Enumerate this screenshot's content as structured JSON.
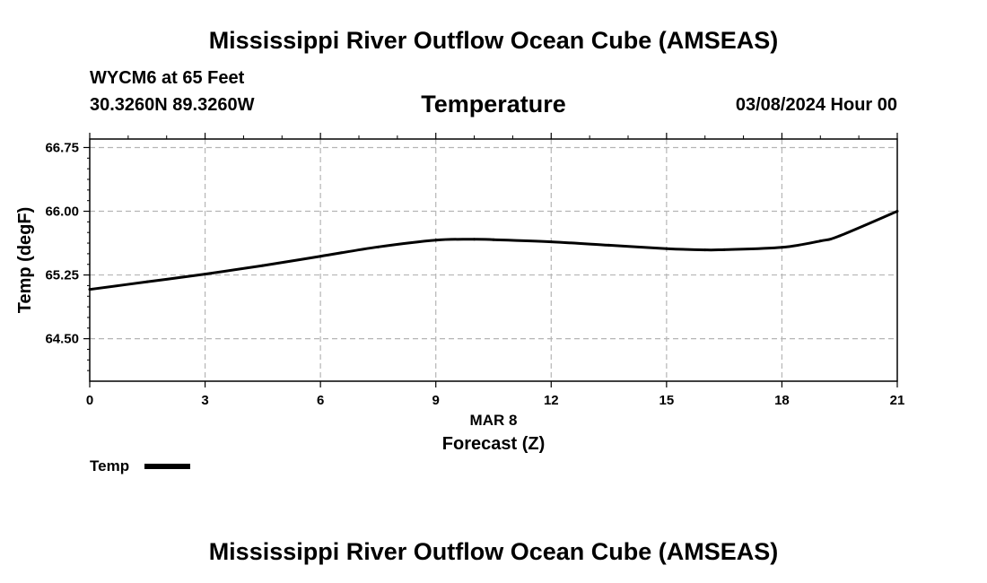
{
  "header": {
    "title": "Mississippi River Outflow Ocean Cube (AMSEAS)",
    "station": "WYCM6 at 65 Feet",
    "coordinates": "30.3260N  89.3260W",
    "subtitle": "Temperature",
    "datetime": "03/08/2024 Hour 00"
  },
  "footer": {
    "title": "Mississippi River Outflow Ocean Cube (AMSEAS)"
  },
  "chart_data": {
    "type": "line",
    "title": "Temperature",
    "xlabel": "Forecast (Z)",
    "xlabel_date": "MAR 8",
    "ylabel": "Temp (degF)",
    "xlim": [
      0,
      21
    ],
    "ylim": [
      64.0,
      66.85
    ],
    "xticks": [
      0,
      3,
      6,
      9,
      12,
      15,
      18,
      21
    ],
    "xtick_labels": [
      "0",
      "3",
      "6",
      "9",
      "12",
      "15",
      "18",
      "21"
    ],
    "yticks": [
      64.5,
      65.25,
      66.0,
      66.75
    ],
    "ytick_labels": [
      "64.50",
      "65.25",
      "66.00",
      "66.75"
    ],
    "grid": true,
    "legend": {
      "position": "bottom-left",
      "label": "Temp"
    },
    "series": [
      {
        "name": "Temp",
        "color": "#000000",
        "x": [
          0,
          1.5,
          3,
          4.5,
          6,
          7.5,
          9,
          10,
          10.5,
          12,
          13.5,
          15,
          16,
          16.5,
          18,
          19,
          19.5,
          21
        ],
        "values": [
          65.08,
          65.17,
          65.26,
          65.36,
          65.47,
          65.58,
          65.66,
          65.67,
          65.665,
          65.64,
          65.6,
          65.56,
          65.545,
          65.548,
          65.575,
          65.65,
          65.71,
          66.0
        ]
      }
    ]
  }
}
